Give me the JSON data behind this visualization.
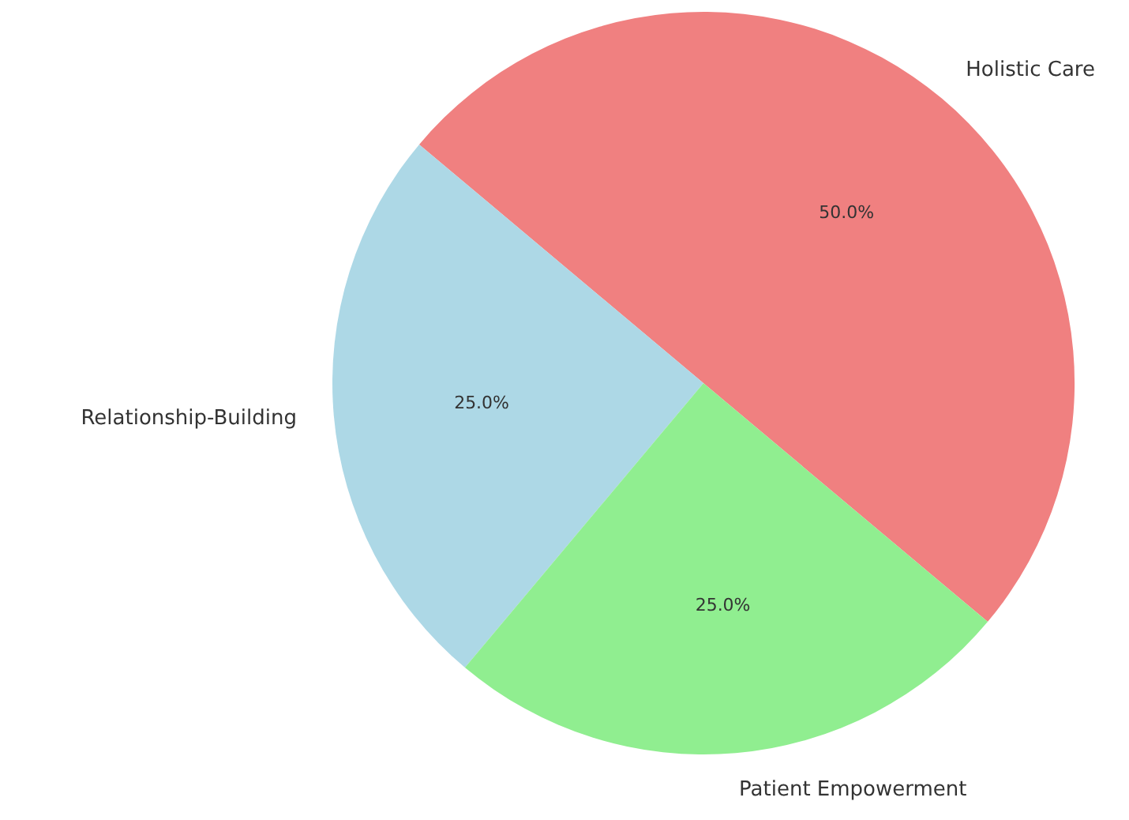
{
  "chart_data": {
    "type": "pie",
    "categories": [
      "Holistic Care",
      "Relationship-Building",
      "Patient Empowerment"
    ],
    "values": [
      50,
      25,
      25
    ],
    "colors": [
      "#f08080",
      "#add8e6",
      "#90ee90"
    ],
    "value_labels": [
      "50.0%",
      "25.0%",
      "25.0%"
    ]
  }
}
